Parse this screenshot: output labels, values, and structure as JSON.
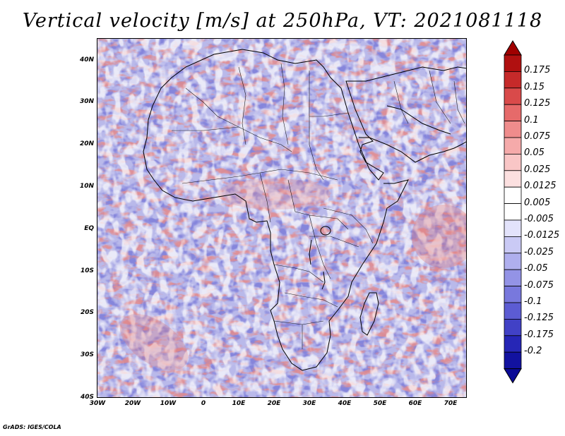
{
  "title": "Vertical velocity [m/s] at 250hPa, VT: 2021081118",
  "map": {
    "lat_ticks": [
      "40N",
      "30N",
      "20N",
      "10N",
      "EQ",
      "10S",
      "20S",
      "30S",
      "40S"
    ],
    "lon_ticks": [
      "30W",
      "20W",
      "10W",
      "0",
      "10E",
      "20E",
      "30E",
      "40E",
      "50E",
      "60E",
      "70E"
    ],
    "extent": {
      "lon_min": -30,
      "lon_max": 75,
      "lat_min": -40,
      "lat_max": 45
    }
  },
  "colorbar": {
    "levels": [
      "0.175",
      "0.15",
      "0.125",
      "0.1",
      "0.075",
      "0.05",
      "0.025",
      "0.0125",
      "0.005",
      "-0.005",
      "-0.0125",
      "-0.025",
      "-0.05",
      "-0.075",
      "-0.1",
      "-0.125",
      "-0.175",
      "-0.2"
    ],
    "colors": [
      "#b01010",
      "#c62a2a",
      "#d94a4a",
      "#e66a6a",
      "#ef8c8c",
      "#f5aaaa",
      "#f9c6c6",
      "#fce0e0",
      "#ffffff",
      "#ffffff",
      "#e3e3fb",
      "#cacaf5",
      "#afafee",
      "#9393e6",
      "#7878dd",
      "#5c5cd3",
      "#4141c6",
      "#2626b6",
      "#1212a0"
    ],
    "top_color": "#a00000",
    "bottom_color": "#0a0a96"
  },
  "footer": "GrADS: IGES/COLA"
}
